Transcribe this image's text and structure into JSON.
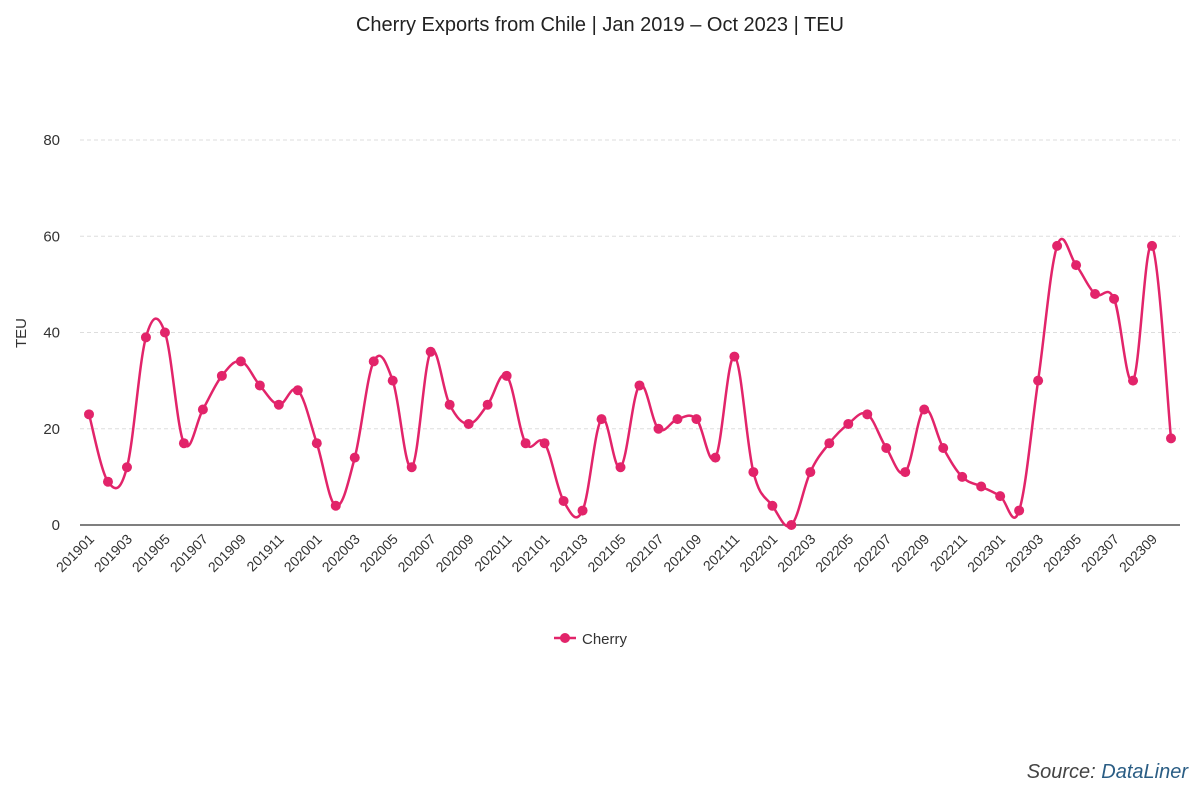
{
  "chart_data": {
    "type": "line",
    "title": "Cherry Exports from Chile | Jan 2019 – Oct 2023 | TEU",
    "xlabel": "",
    "ylabel": "TEU",
    "ylim": [
      0,
      80
    ],
    "yticks": [
      0,
      20,
      40,
      60,
      80
    ],
    "grid": true,
    "legend": "bottom",
    "categories": [
      "201901",
      "201902",
      "201903",
      "201904",
      "201905",
      "201906",
      "201907",
      "201908",
      "201909",
      "201910",
      "201911",
      "201912",
      "202001",
      "202002",
      "202003",
      "202004",
      "202005",
      "202006",
      "202007",
      "202008",
      "202009",
      "202010",
      "202011",
      "202012",
      "202101",
      "202102",
      "202103",
      "202104",
      "202105",
      "202106",
      "202107",
      "202108",
      "202109",
      "202110",
      "202111",
      "202112",
      "202201",
      "202202",
      "202203",
      "202204",
      "202205",
      "202206",
      "202207",
      "202208",
      "202209",
      "202210",
      "202211",
      "202212",
      "202301",
      "202302",
      "202303",
      "202304",
      "202305",
      "202306",
      "202307",
      "202308",
      "202309",
      "202310"
    ],
    "series": [
      {
        "name": "Cherry",
        "color": "#e2246a",
        "values": [
          23,
          9,
          12,
          39,
          40,
          17,
          24,
          31,
          34,
          29,
          25,
          28,
          17,
          4,
          14,
          34,
          30,
          12,
          36,
          25,
          21,
          25,
          31,
          17,
          17,
          5,
          3,
          22,
          12,
          29,
          20,
          22,
          22,
          14,
          35,
          11,
          4,
          0,
          11,
          17,
          21,
          23,
          16,
          11,
          24,
          16,
          10,
          8,
          6,
          3,
          30,
          58,
          54,
          48,
          47,
          30,
          58,
          18
        ]
      }
    ]
  },
  "source": {
    "prefix": "Source: ",
    "brand": "DataLiner"
  }
}
